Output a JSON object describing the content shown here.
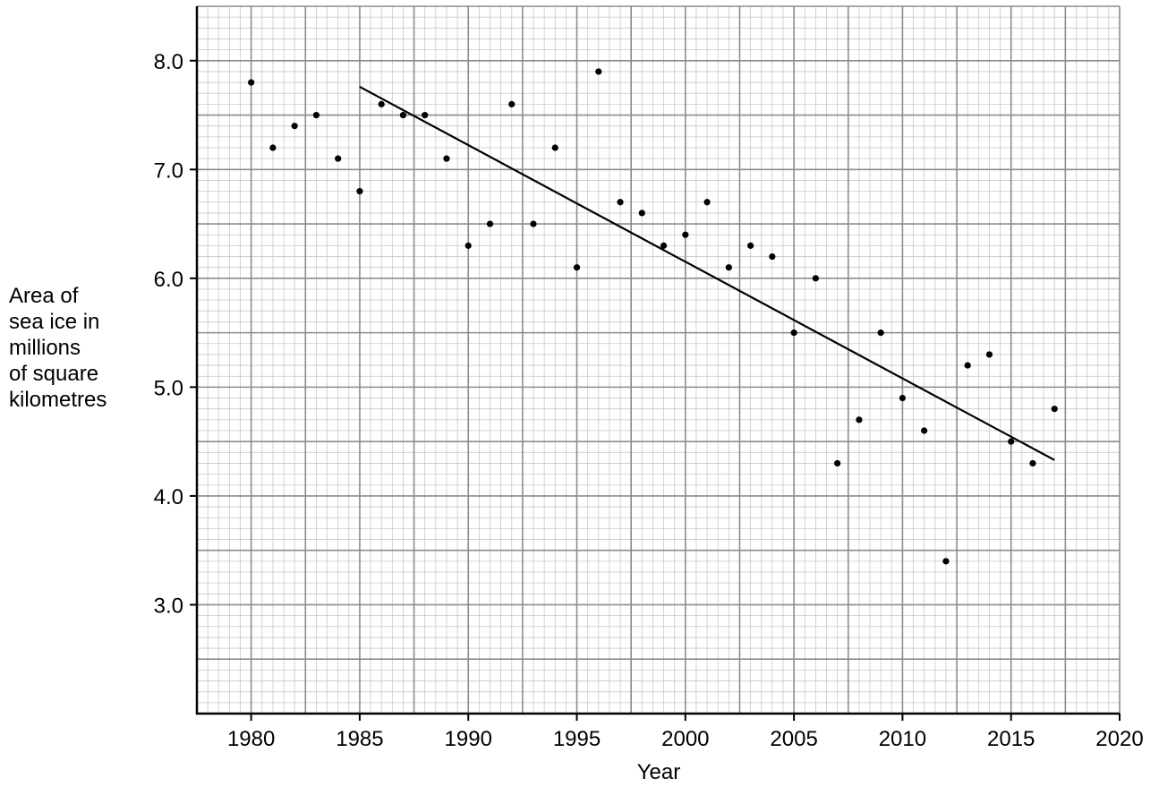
{
  "chart_data": {
    "type": "scatter",
    "title": "",
    "xlabel": "Year",
    "ylabel_lines": [
      "Area of",
      "sea ice in",
      "millions",
      "of square",
      "kilometres"
    ],
    "xlim": [
      1977.5,
      2020
    ],
    "ylim": [
      2.0,
      8.5
    ],
    "x_ticks": [
      1980,
      1985,
      1990,
      1995,
      2000,
      2005,
      2010,
      2015,
      2020
    ],
    "x_tick_labels": [
      "1980",
      "1985",
      "1990",
      "1995",
      "2000",
      "2005",
      "2010",
      "2015",
      "2020"
    ],
    "y_ticks": [
      3.0,
      4.0,
      5.0,
      6.0,
      7.0,
      8.0
    ],
    "y_tick_labels": [
      "3.0",
      "4.0",
      "5.0",
      "6.0",
      "7.0",
      "8.0"
    ],
    "grid": true,
    "points": [
      {
        "x": 1980,
        "y": 7.8
      },
      {
        "x": 1981,
        "y": 7.2
      },
      {
        "x": 1982,
        "y": 7.4
      },
      {
        "x": 1983,
        "y": 7.5
      },
      {
        "x": 1984,
        "y": 7.1
      },
      {
        "x": 1985,
        "y": 6.8
      },
      {
        "x": 1986,
        "y": 7.6
      },
      {
        "x": 1987,
        "y": 7.5
      },
      {
        "x": 1988,
        "y": 7.5
      },
      {
        "x": 1989,
        "y": 7.1
      },
      {
        "x": 1990,
        "y": 6.3
      },
      {
        "x": 1991,
        "y": 6.5
      },
      {
        "x": 1992,
        "y": 7.6
      },
      {
        "x": 1993,
        "y": 6.5
      },
      {
        "x": 1994,
        "y": 7.2
      },
      {
        "x": 1995,
        "y": 6.1
      },
      {
        "x": 1996,
        "y": 7.9
      },
      {
        "x": 1997,
        "y": 6.7
      },
      {
        "x": 1998,
        "y": 6.6
      },
      {
        "x": 1999,
        "y": 6.3
      },
      {
        "x": 2000,
        "y": 6.4
      },
      {
        "x": 2001,
        "y": 6.7
      },
      {
        "x": 2002,
        "y": 6.1
      },
      {
        "x": 2003,
        "y": 6.3
      },
      {
        "x": 2004,
        "y": 6.2
      },
      {
        "x": 2005,
        "y": 5.5
      },
      {
        "x": 2006,
        "y": 6.0
      },
      {
        "x": 2007,
        "y": 4.3
      },
      {
        "x": 2008,
        "y": 4.7
      },
      {
        "x": 2009,
        "y": 5.5
      },
      {
        "x": 2010,
        "y": 4.9
      },
      {
        "x": 2011,
        "y": 4.6
      },
      {
        "x": 2012,
        "y": 3.4
      },
      {
        "x": 2013,
        "y": 5.2
      },
      {
        "x": 2014,
        "y": 5.3
      },
      {
        "x": 2015,
        "y": 4.5
      },
      {
        "x": 2016,
        "y": 4.3
      },
      {
        "x": 2017,
        "y": 4.8
      }
    ],
    "trend_line": {
      "x1": 1985,
      "y1": 7.76,
      "x2": 2017,
      "y2": 4.33
    },
    "colors": {
      "major_grid": "#8c8c8c",
      "minor_grid": "#c8c8c8",
      "axis": "#000000",
      "points": "#000000",
      "trend_line": "#000000"
    }
  }
}
